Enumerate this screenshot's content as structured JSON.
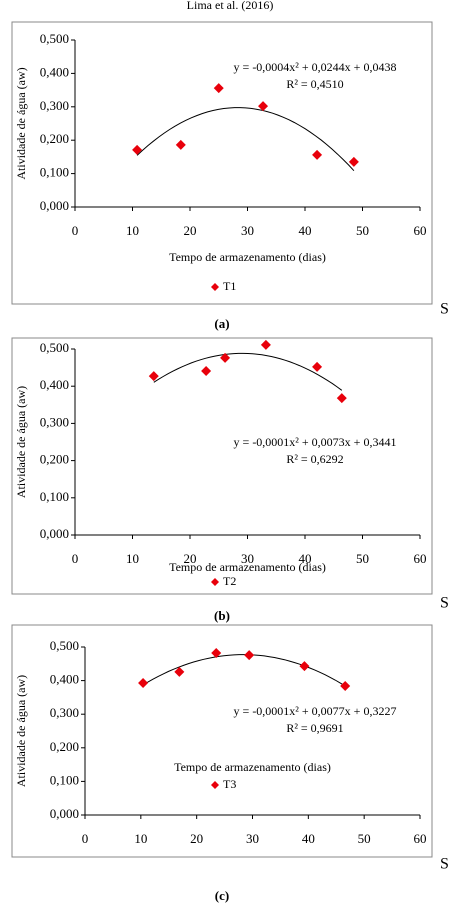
{
  "header": "Lima et al. (2016)",
  "side_marks": [
    "S",
    "S",
    "S"
  ],
  "chart_data": [
    {
      "type": "scatter",
      "caption": "(a)",
      "x_label": "Tempo de armazenamento (dias)",
      "y_label": "Atividade de água (aw)",
      "equation": "y = -0,0004x² + 0,0244x + 0,0438",
      "r_squared": "R² = 0,4510",
      "series": [
        {
          "name": "T1",
          "color": "#e8000b",
          "x": [
            10.8,
            18.4,
            25,
            32.7,
            42.1,
            48.5
          ],
          "values": [
            0.171,
            0.186,
            0.356,
            0.302,
            0.156,
            0.135
          ]
        }
      ],
      "xlim": [
        0,
        60
      ],
      "xticks": [
        0,
        10,
        20,
        30,
        40,
        50,
        60
      ],
      "ylim": [
        0,
        0.5
      ],
      "yticks": [
        {
          "value": 0,
          "label": "0,000"
        },
        {
          "value": 0.1,
          "label": "0,100"
        },
        {
          "value": 0.2,
          "label": "0,200"
        },
        {
          "value": 0.3,
          "label": "0,300"
        },
        {
          "value": 0.4,
          "label": "0,400"
        },
        {
          "value": 0.5,
          "label": "0,500"
        }
      ]
    },
    {
      "type": "scatter",
      "caption": "(b)",
      "x_label": "Tempo de armazenamento (dias)",
      "y_label": "Atividade de água (aw)",
      "equation": "y = -0,0001x² + 0,0073x + 0,3441",
      "r_squared": "R² = 0,6292",
      "series": [
        {
          "name": "T2",
          "color": "#e8000b",
          "x": [
            13.7,
            22.8,
            26.1,
            33.2,
            42.1,
            46.4
          ],
          "values": [
            0.427,
            0.441,
            0.476,
            0.511,
            0.452,
            0.368
          ]
        }
      ],
      "xlim": [
        0,
        60
      ],
      "xticks": [
        0,
        10,
        20,
        30,
        40,
        50,
        60
      ],
      "ylim": [
        0,
        0.5
      ],
      "yticks": [
        {
          "value": 0,
          "label": "0,000"
        },
        {
          "value": 0.1,
          "label": "0,100"
        },
        {
          "value": 0.2,
          "label": "0,200"
        },
        {
          "value": 0.3,
          "label": "0,300"
        },
        {
          "value": 0.4,
          "label": "0,400"
        },
        {
          "value": 0.5,
          "label": "0,500"
        }
      ]
    },
    {
      "type": "scatter",
      "caption": "(c)",
      "x_label": "Tempo de armazenamento (dias)",
      "y_label": "Atividade de água (aw)",
      "equation": "y = -0,0001x² + 0,0077x + 0,3227",
      "r_squared": "R² = 0,9691",
      "series": [
        {
          "name": "T3",
          "color": "#e8000b",
          "x": [
            10.4,
            16.9,
            23.5,
            29.4,
            39.3,
            46.6
          ],
          "values": [
            0.393,
            0.426,
            0.482,
            0.476,
            0.443,
            0.384
          ]
        }
      ],
      "xlim": [
        0,
        60
      ],
      "xticks": [
        0,
        10,
        20,
        30,
        40,
        50,
        60
      ],
      "ylim": [
        0,
        0.5
      ],
      "yticks": [
        {
          "value": 0,
          "label": "0,000"
        },
        {
          "value": 0.1,
          "label": "0,100"
        },
        {
          "value": 0.2,
          "label": "0,200"
        },
        {
          "value": 0.3,
          "label": "0,300"
        },
        {
          "value": 0.4,
          "label": "0,400"
        },
        {
          "value": 0.5,
          "label": "0,500"
        }
      ]
    }
  ]
}
